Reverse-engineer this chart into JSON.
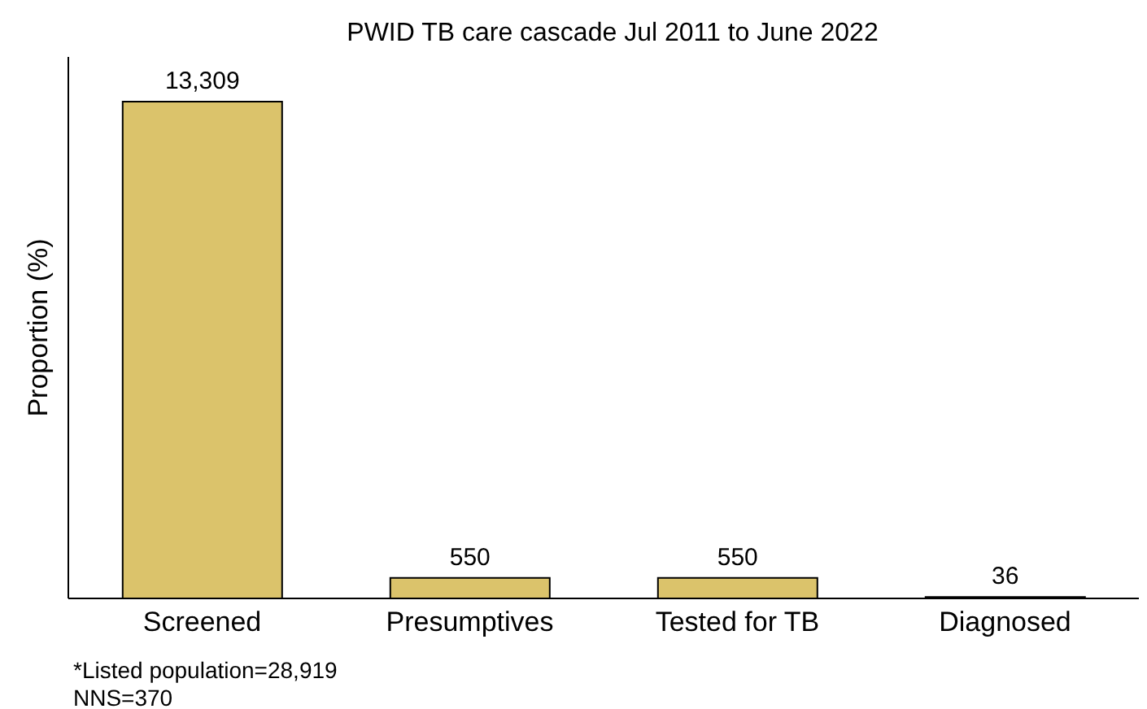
{
  "chart_data": {
    "type": "bar",
    "title": "PWID TB care cascade Jul 2011 to June 2022",
    "ylabel": "Proportion (%)",
    "categories": [
      "Screened",
      "Presumptives",
      "Tested for TB",
      "Diagnosed"
    ],
    "values": [
      13309,
      550,
      550,
      36
    ],
    "value_labels": [
      "13,309",
      "550",
      "550",
      "36"
    ],
    "color": "#dbc36b",
    "tick_labels": "x",
    "annotations": [
      "*Listed population=28,919",
      "NNS=370"
    ]
  }
}
